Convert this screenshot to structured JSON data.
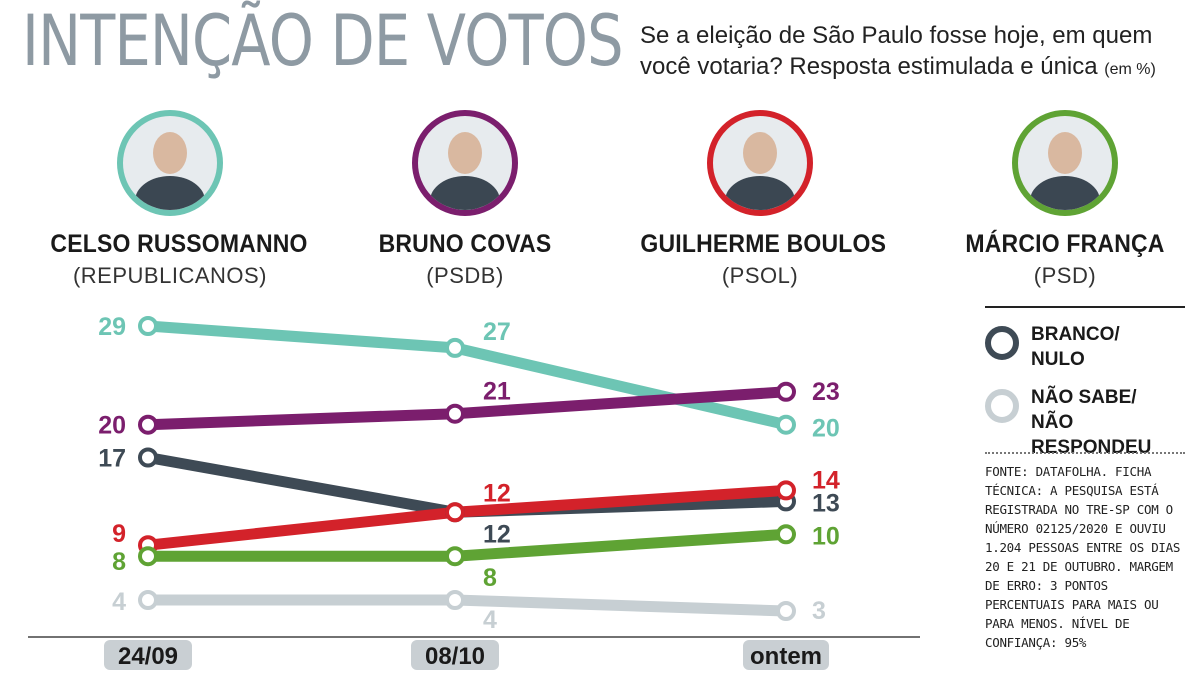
{
  "header": {
    "title": "INTENÇÃO DE VOTOS",
    "question": "Se a eleição de São Paulo fosse hoje, em quem você votaria? Resposta estimulada e única",
    "unit": "(em %)"
  },
  "candidates": [
    {
      "name": "CELSO RUSSOMANNO",
      "party": "(REPUBLICANOS)",
      "color": "#6dc5b4"
    },
    {
      "name": "BRUNO COVAS",
      "party": "(PSDB)",
      "color": "#7b1e6d"
    },
    {
      "name": "GUILHERME BOULOS",
      "party": "(PSOL)",
      "color": "#d3222a"
    },
    {
      "name": "MÁRCIO FRANÇA",
      "party": "(PSD)",
      "color": "#5fa334"
    }
  ],
  "legend": [
    {
      "label_line1": "BRANCO/",
      "label_line2": "NULO",
      "color": "#3e4a55"
    },
    {
      "label_line1": "NÃO SABE/",
      "label_line2": "NÃO RESPONDEU",
      "color": "#c7cfd3"
    }
  ],
  "source": "FONTE: DATAFOLHA. FICHA TÉCNICA: A PESQUISA ESTÁ REGISTRADA NO TRE-SP COM O NÚMERO 02125/2020 E OUVIU 1.204 PESSOAS ENTRE OS DIAS 20 E 21 DE OUTUBRO. MARGEM DE ERRO: 3 PONTOS PERCENTUAIS PARA MAIS OU PARA MENOS. NÍVEL DE CONFIANÇA: 95%",
  "chart_data": {
    "type": "line",
    "x": [
      "24/09",
      "08/10",
      "ontem"
    ],
    "ylim": [
      0,
      30
    ],
    "grid": false,
    "series": [
      {
        "name": "CELSO RUSSOMANNO",
        "values": [
          29,
          27,
          20
        ],
        "color": "#6dc5b4"
      },
      {
        "name": "BRUNO COVAS",
        "values": [
          20,
          21,
          23
        ],
        "color": "#7b1e6d"
      },
      {
        "name": "BRANCO/NULO",
        "values": [
          17,
          12,
          13
        ],
        "color": "#3e4a55"
      },
      {
        "name": "GUILHERME BOULOS",
        "values": [
          9,
          12,
          14
        ],
        "color": "#d3222a"
      },
      {
        "name": "MÁRCIO FRANÇA",
        "values": [
          8,
          8,
          10
        ],
        "color": "#5fa334"
      },
      {
        "name": "NÃO SABE/NÃO RESPONDEU",
        "values": [
          4,
          4,
          3
        ],
        "color": "#c7cfd3"
      }
    ]
  }
}
